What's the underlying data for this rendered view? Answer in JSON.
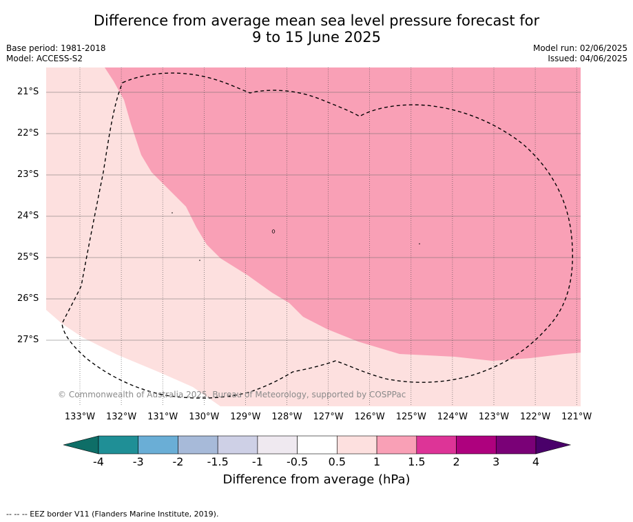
{
  "title_line1": "Difference from average mean sea level pressure forecast for",
  "title_line2": "9 to 15 June 2025",
  "meta_left": [
    "Base period: 1981-2018",
    "Model: ACCESS-S2"
  ],
  "meta_right": [
    "Model run: 02/06/2025",
    "Issued: 04/06/2025"
  ],
  "lat_labels": [
    "21°S",
    "22°S",
    "23°S",
    "24°S",
    "25°S",
    "26°S",
    "27°S"
  ],
  "lon_labels": [
    "133°W",
    "132°W",
    "131°W",
    "130°W",
    "129°W",
    "128°W",
    "127°W",
    "126°W",
    "125°W",
    "124°W",
    "123°W",
    "122°W",
    "121°W"
  ],
  "copyright": "© Commonwealth of Australia 2025, Bureau of Meteorology, supported by COSPPac",
  "colorbar": {
    "ticks": [
      "-4",
      "-3",
      "-2",
      "-1.5",
      "-1",
      "-0.5",
      "0.5",
      "1",
      "1.5",
      "2",
      "3",
      "4"
    ],
    "colors": [
      "#0e6e67",
      "#1f8f96",
      "#6aaed6",
      "#a7bad9",
      "#ced0e6",
      "#efe9f0",
      "#ffffff",
      "#fde0df",
      "#f9a0b6",
      "#dd3497",
      "#ae017e",
      "#7a0177",
      "#4a006a"
    ],
    "label": "Difference from average (hPa)"
  },
  "map_colors": {
    "band_0.5_1": "#fde0df",
    "band_1_1.5": "#f9a0b6"
  },
  "footnote": "--  --  -- EEZ border V11 (Flanders Marine Institute, 2019)."
}
